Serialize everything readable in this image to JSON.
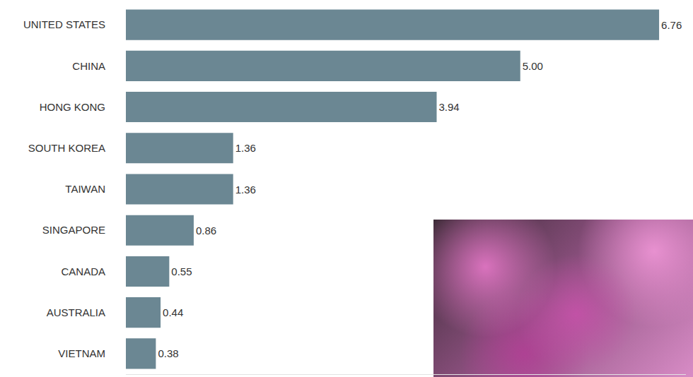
{
  "chart_data": {
    "type": "bar",
    "orientation": "horizontal",
    "categories": [
      "UNITED STATES",
      "CHINA",
      "HONG KONG",
      "SOUTH KOREA",
      "TAIWAN",
      "SINGAPORE",
      "CANADA",
      "AUSTRALIA",
      "VIETNAM"
    ],
    "values": [
      6.76,
      5.0,
      3.94,
      1.36,
      1.36,
      0.86,
      0.55,
      0.44,
      0.38
    ],
    "value_labels": [
      "6.76",
      "5.00",
      "3.94",
      "1.36",
      "1.36",
      "0.86",
      "0.55",
      "0.44",
      "0.38"
    ],
    "color": "#6b8793",
    "xlim": [
      0,
      7.1
    ],
    "xticks": [
      0
    ],
    "data_labels": true,
    "tick_labels": "y",
    "grid": false
  }
}
